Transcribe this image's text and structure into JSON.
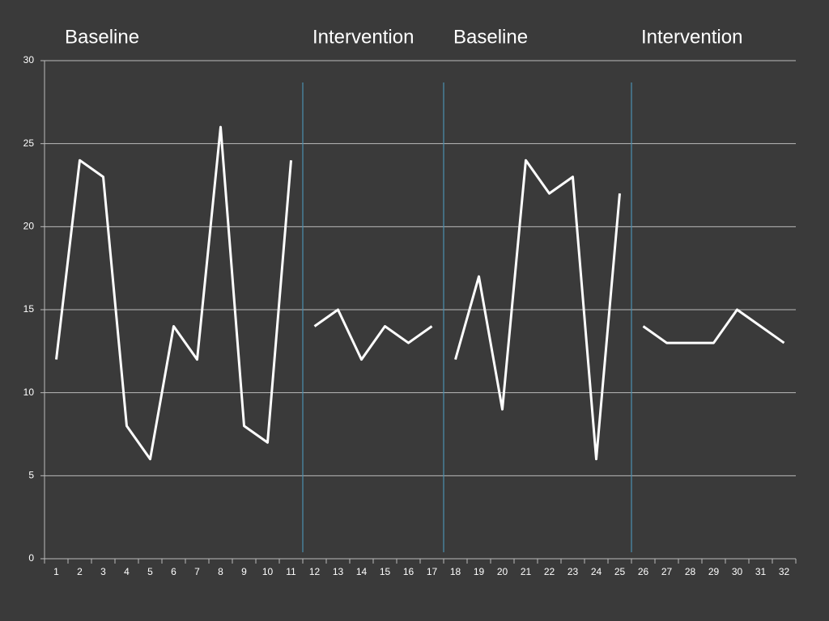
{
  "chart_data": {
    "type": "line",
    "categories": [
      1,
      2,
      3,
      4,
      5,
      6,
      7,
      8,
      9,
      10,
      11,
      12,
      13,
      14,
      15,
      16,
      17,
      18,
      19,
      20,
      21,
      22,
      23,
      24,
      25,
      26,
      27,
      28,
      29,
      30,
      31,
      32
    ],
    "series": [
      {
        "name": "Baseline",
        "color": "#ffffff",
        "values": [
          12,
          24,
          23,
          8,
          6,
          14,
          12,
          26,
          8,
          7,
          24,
          null,
          null,
          null,
          null,
          null,
          null,
          null,
          null,
          null,
          null,
          null,
          null,
          null,
          null,
          null,
          null,
          null,
          null,
          null,
          null,
          null
        ]
      },
      {
        "name": "Intervention",
        "color": "#ffffff",
        "values": [
          null,
          null,
          null,
          null,
          null,
          null,
          null,
          null,
          null,
          null,
          null,
          14,
          15,
          12,
          14,
          13,
          14,
          null,
          null,
          null,
          null,
          null,
          null,
          null,
          null,
          null,
          null,
          null,
          null,
          null,
          null,
          null
        ]
      },
      {
        "name": "Baseline",
        "color": "#ffffff",
        "values": [
          null,
          null,
          null,
          null,
          null,
          null,
          null,
          null,
          null,
          null,
          null,
          null,
          null,
          null,
          null,
          null,
          null,
          12,
          17,
          9,
          24,
          22,
          23,
          6,
          22,
          null,
          null,
          null,
          null,
          null,
          null,
          null
        ]
      },
      {
        "name": "Intervention",
        "color": "#ffffff",
        "values": [
          null,
          null,
          null,
          null,
          null,
          null,
          null,
          null,
          null,
          null,
          null,
          null,
          null,
          null,
          null,
          null,
          null,
          null,
          null,
          null,
          null,
          null,
          null,
          null,
          null,
          14,
          13,
          13,
          13,
          15,
          14,
          13
        ]
      }
    ],
    "ylim": [
      0,
      30
    ],
    "yticks": [
      0,
      5,
      10,
      15,
      20,
      25,
      30
    ],
    "grid": true
  }
}
